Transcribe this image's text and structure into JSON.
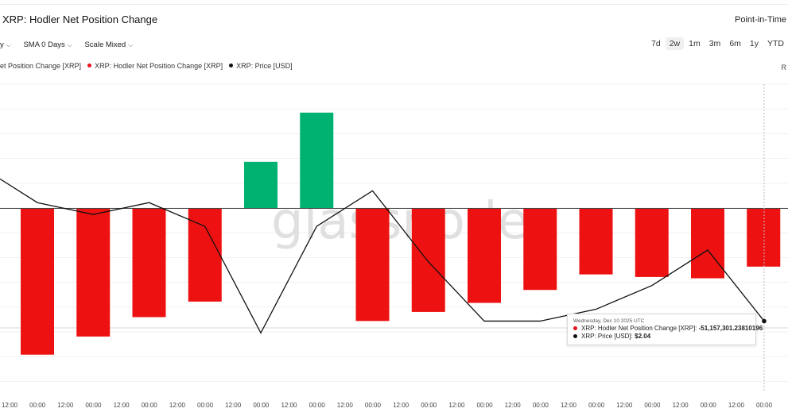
{
  "header": {
    "title": "XRP: Hodler Net Position Change",
    "point_in_time": "Point-in-Time"
  },
  "controls": {
    "resolution_label": "y",
    "sma_label": "SMA 0 Days",
    "scale_label": "Scale Mixed"
  },
  "ranges": {
    "items": [
      "7d",
      "2w",
      "1m",
      "3m",
      "6m",
      "1y",
      "YTD"
    ],
    "active": "2w"
  },
  "legend": {
    "items": [
      {
        "label": "et Position Change [XRP]",
        "color": "",
        "has_dot": false
      },
      {
        "label": "XRP: Hodler Net Position Change [XRP]",
        "color": "#e8131b",
        "has_dot": true
      },
      {
        "label": "XRP: Price [USD]",
        "color": "#111111",
        "has_dot": true
      }
    ]
  },
  "r_button": "R",
  "watermark": "glassnode",
  "colors": {
    "positive": "#00b272",
    "negative": "#ee1111",
    "price_line": "#111111"
  },
  "chart_data": {
    "type": "bar",
    "x_tick_labels": [
      "12:00",
      "00:00",
      "12:00",
      "00:00",
      "12:00",
      "00:00",
      "12:00",
      "00:00",
      "12:00",
      "00:00",
      "12:00",
      "00:00",
      "12:00",
      "00:00",
      "12:00",
      "00:00",
      "12:00",
      "00:00",
      "12:00",
      "00:00",
      "12:00",
      "00:00",
      "12:00",
      "00:00",
      "12:00",
      "00:00",
      "12:00",
      "00:00"
    ],
    "series": [
      {
        "name": "XRP: Hodler Net Position Change [XRP]",
        "values": [
          -113000000,
          -99000000,
          -84000000,
          -72000000,
          36000000,
          74000000,
          -87000000,
          -80000000,
          -73000000,
          -63000000,
          -51000000,
          -53000000,
          -54000000,
          -45000000
        ]
      },
      {
        "name": "XRP: Price [USD]",
        "values": [
          2.14,
          2.13,
          2.14,
          2.12,
          2.03,
          2.12,
          2.15,
          2.09,
          2.04,
          2.04,
          2.05,
          2.07,
          2.1,
          2.04
        ],
        "first_value_offscreen": 2.16
      }
    ],
    "bar_ylim": [
      -142000000,
      96000000
    ],
    "price_ylim": [
      1.98,
      2.24
    ],
    "grid": true,
    "legend_position": "top-left"
  },
  "tooltip": {
    "date": "Wednesday, Dec 10 2025 UTC",
    "rows": [
      {
        "label": "XRP: Hodler Net Position Change [XRP]: ",
        "value": "-51,157,301.23810196",
        "color": "#e8131b"
      },
      {
        "label": "XRP: Price [USD]: ",
        "value": "$2.04",
        "color": "#111111"
      }
    ]
  }
}
